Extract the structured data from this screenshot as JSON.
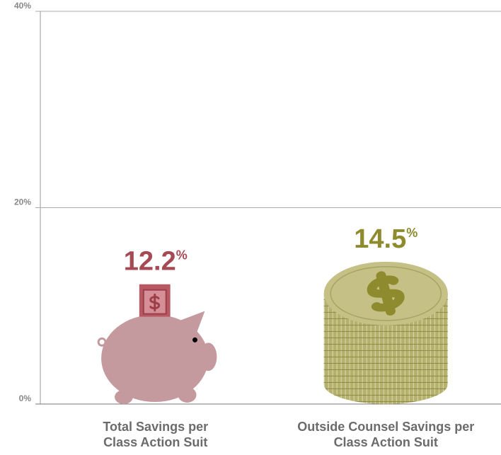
{
  "chart_data": {
    "type": "bar",
    "categories": [
      "Total Savings per Class Action Suit",
      "Outside Counsel Savings per Class Action Suit"
    ],
    "values": [
      12.2,
      14.5
    ],
    "value_labels": [
      "12.2%",
      "14.5%"
    ],
    "colors": [
      "#c49a9e",
      "#c4c086"
    ],
    "label_colors": [
      "#a54a55",
      "#8e8a2e"
    ],
    "ylim": [
      0,
      40
    ],
    "yticks": [
      {
        "value": 0,
        "label": "0%"
      },
      {
        "value": 20,
        "label": "20%"
      },
      {
        "value": 40,
        "label": "40%"
      }
    ],
    "grid": true
  }
}
